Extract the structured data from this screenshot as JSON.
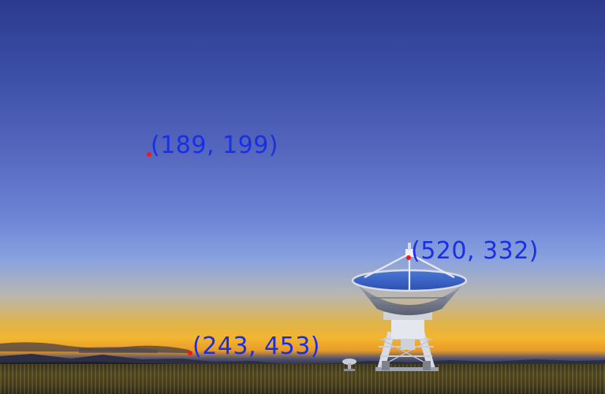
{
  "scene": {
    "subject": "radio-telescope-dish",
    "sky_colors": [
      "#2b3a8c",
      "#6e86d6",
      "#f3b52e"
    ]
  },
  "markers": [
    {
      "label": "(189, 199)",
      "color": "#ff1414"
    },
    {
      "label": "(520, 332)",
      "color": "#ff1414"
    },
    {
      "label": "(243, 453)",
      "color": "#ff1414"
    }
  ],
  "label_color": "#1a2ee6"
}
